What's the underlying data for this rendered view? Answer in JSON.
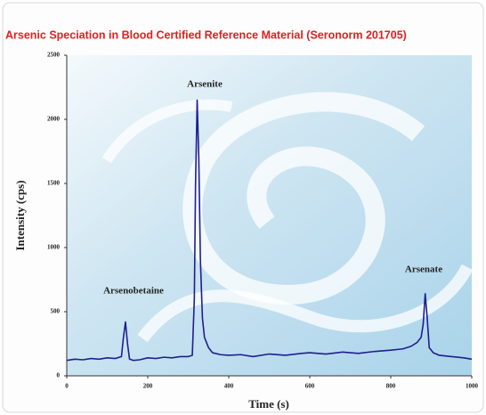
{
  "chart_data": {
    "type": "line",
    "title": "Arsenic Speciation in Blood Certified Reference Material (Seronorm 201705)",
    "xlabel": "Time (s)",
    "ylabel": "Intensity (cps)",
    "annotations": [
      "Arsenite",
      "Arsenobetaine",
      "Arsenate"
    ],
    "color": "#1f1f8f",
    "x": [
      0,
      20,
      40,
      60,
      80,
      100,
      120,
      135,
      140,
      145,
      150,
      155,
      165,
      180,
      200,
      220,
      240,
      260,
      280,
      300,
      310,
      315,
      318,
      322,
      326,
      330,
      335,
      340,
      350,
      360,
      380,
      400,
      430,
      460,
      500,
      540,
      580,
      600,
      640,
      680,
      720,
      760,
      800,
      830,
      850,
      865,
      875,
      880,
      885,
      890,
      895,
      905,
      920,
      950,
      980,
      1000
    ],
    "values": [
      120,
      130,
      125,
      135,
      130,
      140,
      135,
      150,
      300,
      420,
      250,
      130,
      120,
      125,
      140,
      135,
      145,
      140,
      150,
      150,
      160,
      600,
      1500,
      2150,
      1700,
      900,
      450,
      300,
      220,
      180,
      165,
      160,
      165,
      150,
      170,
      160,
      175,
      180,
      170,
      185,
      175,
      190,
      200,
      210,
      230,
      260,
      300,
      400,
      640,
      450,
      220,
      180,
      160,
      150,
      140,
      130
    ],
    "xlim": [
      0,
      1000
    ],
    "xticks": [
      0,
      200,
      400,
      600,
      800,
      1000
    ],
    "ylim": [
      0,
      2500
    ],
    "yticks": [
      0,
      500,
      1000,
      1500,
      2000,
      2500
    ]
  }
}
